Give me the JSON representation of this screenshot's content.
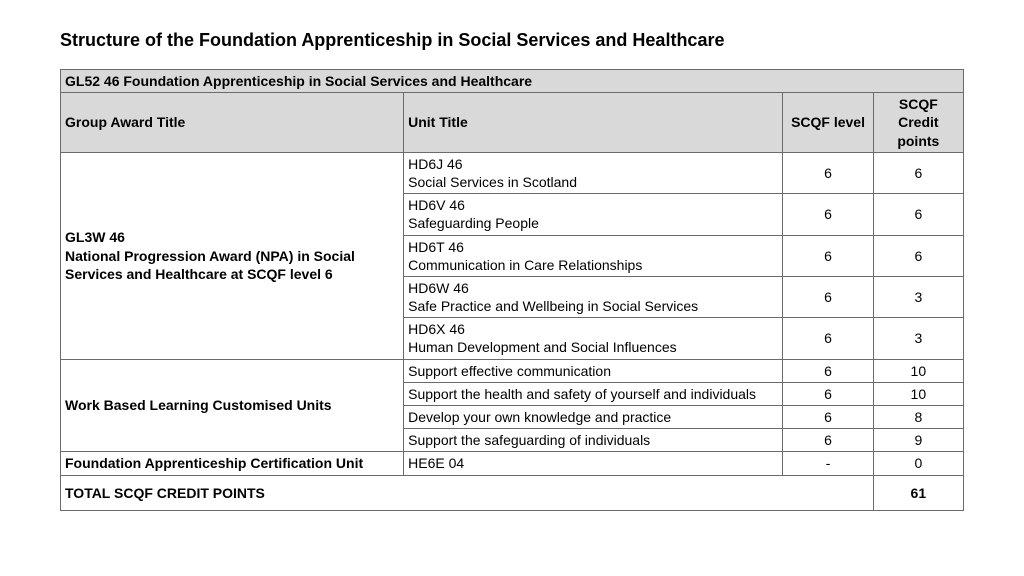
{
  "page_title": "Structure of the Foundation Apprenticeship in Social Services and Healthcare",
  "table_title": "GL52 46 Foundation Apprenticeship in Social Services and Healthcare",
  "headers": {
    "group": "Group Award Title",
    "unit": "Unit Title",
    "level": "SCQF level",
    "credit": "SCQF Credit points"
  },
  "groups": [
    {
      "title": "GL3W 46\nNational Progression Award (NPA) in Social Services and Healthcare at SCQF level 6",
      "units": [
        {
          "title": "HD6J 46\nSocial Services in Scotland",
          "level": "6",
          "credit": "6"
        },
        {
          "title": "HD6V 46\nSafeguarding People",
          "level": "6",
          "credit": "6"
        },
        {
          "title": "HD6T 46\nCommunication in Care Relationships",
          "level": "6",
          "credit": "6"
        },
        {
          "title": "HD6W 46\nSafe Practice and Wellbeing in Social Services",
          "level": "6",
          "credit": "3"
        },
        {
          "title": "HD6X 46\nHuman Development and Social Influences",
          "level": "6",
          "credit": "3"
        }
      ]
    },
    {
      "title": "Work Based Learning Customised Units",
      "units": [
        {
          "title": "Support effective communication",
          "level": "6",
          "credit": "10"
        },
        {
          "title": "Support the health and safety of yourself and individuals",
          "level": "6",
          "credit": "10"
        },
        {
          "title": "Develop your own knowledge and practice",
          "level": "6",
          "credit": "8"
        },
        {
          "title": "Support the safeguarding of individuals",
          "level": "6",
          "credit": "9"
        }
      ]
    },
    {
      "title": "Foundation Apprenticeship Certification Unit",
      "units": [
        {
          "title": "HE6E 04",
          "level": "-",
          "credit": "0"
        }
      ]
    }
  ],
  "total_label": "TOTAL SCQF CREDIT POINTS",
  "total_value": "61"
}
